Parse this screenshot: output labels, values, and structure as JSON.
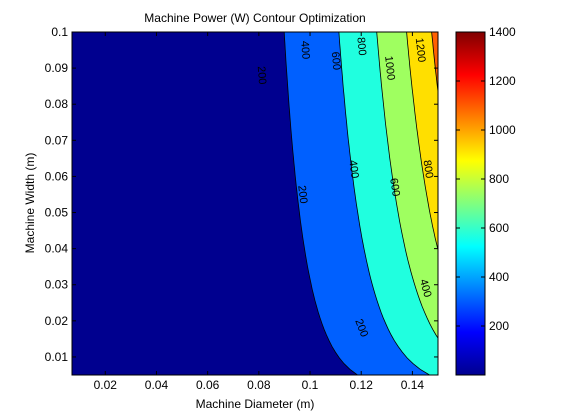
{
  "chart_data": {
    "type": "contourf",
    "title": "Machine Power (W) Contour Optimization",
    "xlabel": "Machine Diameter (m)",
    "ylabel": "Machine Width (m)",
    "xlim": [
      0.007,
      0.15
    ],
    "ylim": [
      0.005,
      0.1
    ],
    "x_ticks": [
      0.02,
      0.04,
      0.06,
      0.08,
      0.1,
      0.12,
      0.14
    ],
    "x_tick_labels": [
      "0.02",
      "0.04",
      "0.06",
      "0.08",
      "0.1",
      "0.12",
      "0.14"
    ],
    "y_ticks": [
      0.01,
      0.02,
      0.03,
      0.04,
      0.05,
      0.06,
      0.07,
      0.08,
      0.09,
      0.1
    ],
    "y_tick_labels": [
      "0.01",
      "0.02",
      "0.03",
      "0.04",
      "0.05",
      "0.06",
      "0.07",
      "0.08",
      "0.09",
      "0.1"
    ],
    "levels": [
      200,
      400,
      600,
      800,
      1000,
      1200
    ],
    "level_colors": [
      "#00008f",
      "#0060ff",
      "#20ffdf",
      "#9fff60",
      "#ffdf00",
      "#ff6000",
      "#cf0000"
    ],
    "contour_labels": [
      {
        "level": 200,
        "text": "200",
        "x": 0.081,
        "y": 0.088
      },
      {
        "level": 200,
        "text": "200",
        "x": 0.097,
        "y": 0.055
      },
      {
        "level": 200,
        "text": "200",
        "x": 0.12,
        "y": 0.018
      },
      {
        "level": 400,
        "text": "400",
        "x": 0.098,
        "y": 0.095
      },
      {
        "level": 400,
        "text": "400",
        "x": 0.117,
        "y": 0.062
      },
      {
        "level": 400,
        "text": "400",
        "x": 0.145,
        "y": 0.029
      },
      {
        "level": 600,
        "text": "600",
        "x": 0.11,
        "y": 0.092
      },
      {
        "level": 600,
        "text": "600",
        "x": 0.133,
        "y": 0.057
      },
      {
        "level": 800,
        "text": "800",
        "x": 0.12,
        "y": 0.096
      },
      {
        "level": 800,
        "text": "800",
        "x": 0.146,
        "y": 0.062
      },
      {
        "level": 1000,
        "text": "1000",
        "x": 0.131,
        "y": 0.09
      },
      {
        "level": 1200,
        "text": "1200",
        "x": 0.143,
        "y": 0.095
      }
    ],
    "colorbar": {
      "range": [
        0,
        1400
      ],
      "ticks": [
        200,
        400,
        600,
        800,
        1000,
        1200,
        1400
      ],
      "tick_labels": [
        "200",
        "400",
        "600",
        "800",
        "1000",
        "1200",
        "1400"
      ]
    },
    "grid": false
  }
}
